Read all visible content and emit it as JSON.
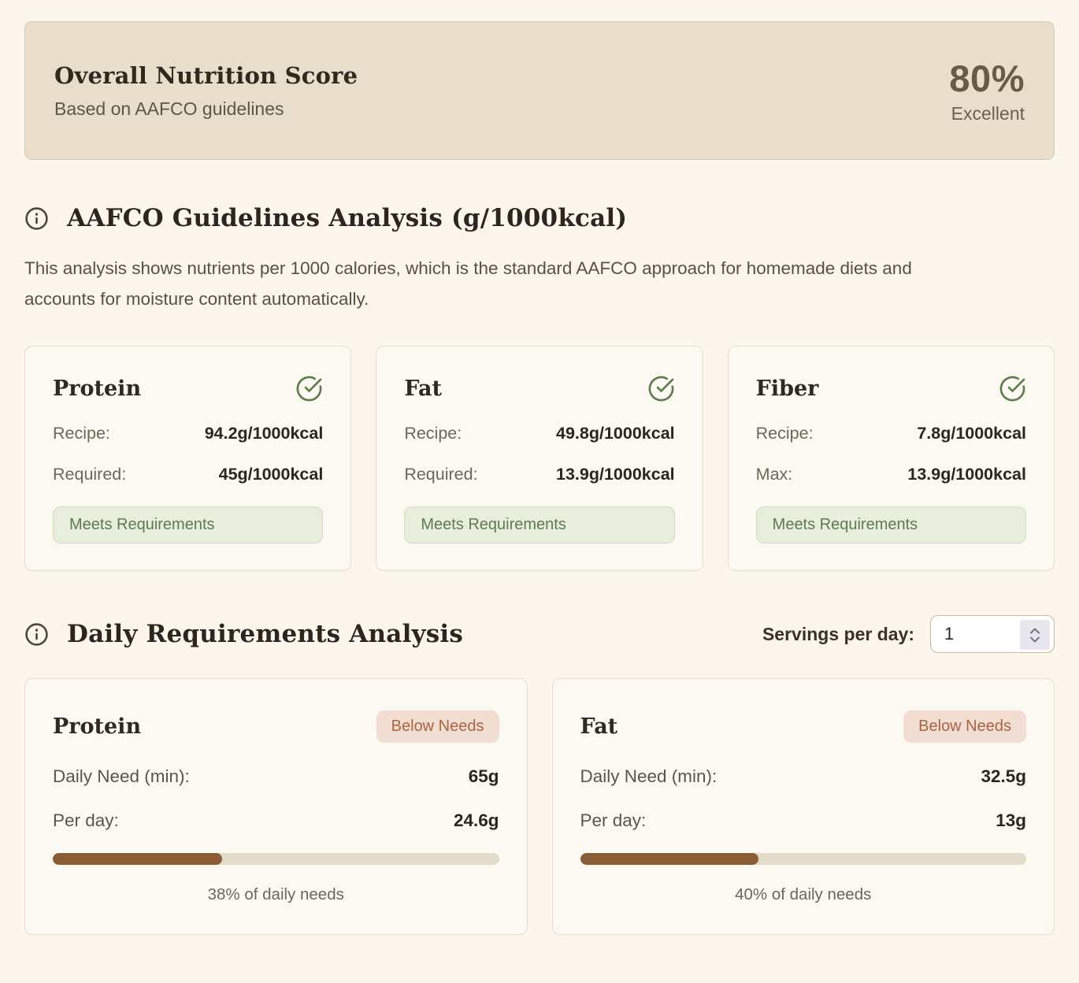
{
  "score_card": {
    "title": "Overall Nutrition Score",
    "subtitle": "Based on AAFCO guidelines",
    "score": "80%",
    "rating": "Excellent"
  },
  "aafco_section": {
    "title": "AAFCO Guidelines Analysis (g/1000kcal)",
    "description": "This analysis shows nutrients per 1000 calories, which is the standard AAFCO approach for homemade diets and accounts for moisture content automatically.",
    "cards": [
      {
        "name": "Protein",
        "status_icon": "check-circle-icon",
        "rows": [
          {
            "label": "Recipe:",
            "value": "94.2g/1000kcal"
          },
          {
            "label": "Required:",
            "value": "45g/1000kcal"
          }
        ],
        "status": "Meets Requirements"
      },
      {
        "name": "Fat",
        "status_icon": "check-circle-icon",
        "rows": [
          {
            "label": "Recipe:",
            "value": "49.8g/1000kcal"
          },
          {
            "label": "Required:",
            "value": "13.9g/1000kcal"
          }
        ],
        "status": "Meets Requirements"
      },
      {
        "name": "Fiber",
        "status_icon": "check-circle-icon",
        "rows": [
          {
            "label": "Recipe:",
            "value": "7.8g/1000kcal"
          },
          {
            "label": "Max:",
            "value": "13.9g/1000kcal"
          }
        ],
        "status": "Meets Requirements"
      }
    ]
  },
  "daily_section": {
    "title": "Daily Requirements Analysis",
    "servings_label": "Servings per day:",
    "servings_value": "1",
    "cards": [
      {
        "name": "Protein",
        "status": "Below Needs",
        "rows": [
          {
            "label": "Daily Need (min):",
            "value": "65g"
          },
          {
            "label": "Per day:",
            "value": "24.6g"
          }
        ],
        "percent": 38,
        "caption": "38% of daily needs"
      },
      {
        "name": "Fat",
        "status": "Below Needs",
        "rows": [
          {
            "label": "Daily Need (min):",
            "value": "32.5g"
          },
          {
            "label": "Per day:",
            "value": "13g"
          }
        ],
        "percent": 40,
        "caption": "40% of daily needs"
      }
    ]
  },
  "colors": {
    "page_bg": "#fbf7ed",
    "score_card_bg": "#e9ddcc",
    "card_bg": "#fcf9f2",
    "card_border": "#e7ddcb",
    "heading_text": "#2b2620",
    "muted_text": "#6d665a",
    "score_text": "#6a5a49",
    "success_green": "#5d7b4d",
    "success_badge_bg": "#e7eedb",
    "success_badge_text": "#5e7b52",
    "warn_badge_bg": "#f2ddd2",
    "warn_badge_text": "#a96542",
    "progress_fill": "#8a5c33",
    "progress_track": "#e3dbca"
  }
}
